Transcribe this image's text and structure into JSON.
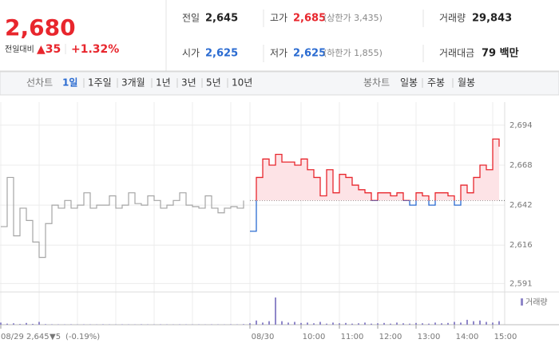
{
  "quote": {
    "price": "2,680",
    "change_label": "전일대비",
    "change": "▲35",
    "rate": "+1.32%"
  },
  "stats": [
    {
      "label": "전일",
      "value": "2,645"
    },
    {
      "label": "고가",
      "value": "2,685",
      "note": "(상한가 3,435)"
    },
    {
      "label": "거래량",
      "value": "29,843"
    },
    {
      "label": "시가",
      "value": "2,625"
    },
    {
      "label": "저가",
      "value": "2,625",
      "note": "(하한가 1,855)"
    },
    {
      "label": "거래대금",
      "value": "79 백만"
    }
  ],
  "line_tabs": {
    "label": "선차트",
    "items": [
      "1일",
      "1주일",
      "3개월",
      "1년",
      "3년",
      "5년",
      "10년"
    ]
  },
  "candle_tabs": {
    "label": "봉차트",
    "items": [
      "일봉",
      "주봉",
      "월봉"
    ]
  },
  "chart_data": {
    "type": "line",
    "step": true,
    "grid": true,
    "categories": [
      "08/29",
      null,
      null,
      null,
      null,
      null,
      null,
      null,
      null,
      null,
      null,
      null,
      null,
      null,
      null,
      null,
      null,
      null,
      null,
      null,
      null,
      null,
      null,
      null,
      null,
      null,
      null,
      null,
      null,
      null,
      null,
      null,
      null,
      null,
      null,
      null,
      null,
      null,
      null,
      "08/30",
      null,
      null,
      null,
      null,
      null,
      null,
      null,
      "10:00",
      null,
      null,
      null,
      null,
      null,
      "11:00",
      null,
      null,
      null,
      null,
      null,
      "12:00",
      null,
      null,
      null,
      null,
      null,
      "13:00",
      null,
      null,
      null,
      null,
      null,
      "14:00",
      null,
      null,
      null,
      null,
      null,
      "15:00",
      null
    ],
    "ylim": [
      2586,
      2709
    ],
    "yticks": [
      {
        "value": 2591,
        "label": "2,591"
      },
      {
        "value": 2616,
        "label": "2,616"
      },
      {
        "value": 2642,
        "label": "2,642"
      },
      {
        "value": 2668,
        "label": "2,668"
      },
      {
        "value": 2694,
        "label": "2,694"
      }
    ],
    "baseline": 2645,
    "series": [
      {
        "color": "#a5a5a5",
        "values": [
          2628,
          2660,
          2622,
          2640,
          2632,
          2618,
          2608,
          2630,
          2642,
          2640,
          2645,
          2640,
          2642,
          2650,
          2640,
          2642,
          2642,
          2648,
          2640,
          2642,
          2650,
          2643,
          2642,
          2648,
          2645,
          2640,
          2642,
          2645,
          2650,
          2642,
          2641,
          2640,
          2648,
          2640,
          2637,
          2640,
          2641,
          2640,
          2645,
          null,
          null,
          null,
          null,
          null,
          null,
          null,
          null,
          null,
          null,
          null,
          null,
          null,
          null,
          null,
          null,
          null,
          null,
          null,
          null,
          null,
          null,
          null,
          null,
          null,
          null,
          null,
          null,
          null,
          null,
          null,
          null,
          null,
          null,
          null,
          null,
          null,
          null,
          null,
          null
        ]
      },
      {
        "color": "#e8262d",
        "color_below": "#2a6bd1",
        "fill": "#fde3e6",
        "values": [
          null,
          null,
          null,
          null,
          null,
          null,
          null,
          null,
          null,
          null,
          null,
          null,
          null,
          null,
          null,
          null,
          null,
          null,
          null,
          null,
          null,
          null,
          null,
          null,
          null,
          null,
          null,
          null,
          null,
          null,
          null,
          null,
          null,
          null,
          null,
          null,
          null,
          null,
          null,
          2625,
          2660,
          2672,
          2668,
          2675,
          2670,
          2670,
          2668,
          2672,
          2665,
          2660,
          2648,
          2665,
          2650,
          2662,
          2660,
          2655,
          2652,
          2650,
          2645,
          2650,
          2650,
          2648,
          2650,
          2645,
          2642,
          2650,
          2648,
          2642,
          2650,
          2650,
          2648,
          2642,
          2655,
          2650,
          2660,
          2668,
          2665,
          2685,
          2680
        ]
      }
    ],
    "volume": {
      "name": "거래량",
      "color": "#8f87c9",
      "lim": [
        0,
        4000
      ],
      "values": [
        300,
        150,
        200,
        100,
        250,
        120,
        400,
        80,
        60,
        50,
        40,
        60,
        30,
        50,
        40,
        30,
        60,
        40,
        30,
        50,
        40,
        30,
        60,
        40,
        30,
        50,
        40,
        30,
        50,
        40,
        30,
        40,
        30,
        50,
        40,
        30,
        60,
        40,
        80,
        200,
        600,
        300,
        500,
        3900,
        500,
        300,
        400,
        250,
        300,
        200,
        400,
        150,
        300,
        200,
        250,
        150,
        200,
        300,
        150,
        200,
        250,
        150,
        300,
        200,
        150,
        250,
        200,
        150,
        300,
        200,
        250,
        400,
        300,
        700,
        500,
        600,
        400,
        300,
        500
      ]
    },
    "hover": {
      "price": "2,645",
      "change": "▼5",
      "rate": "(-0.19%)"
    }
  }
}
